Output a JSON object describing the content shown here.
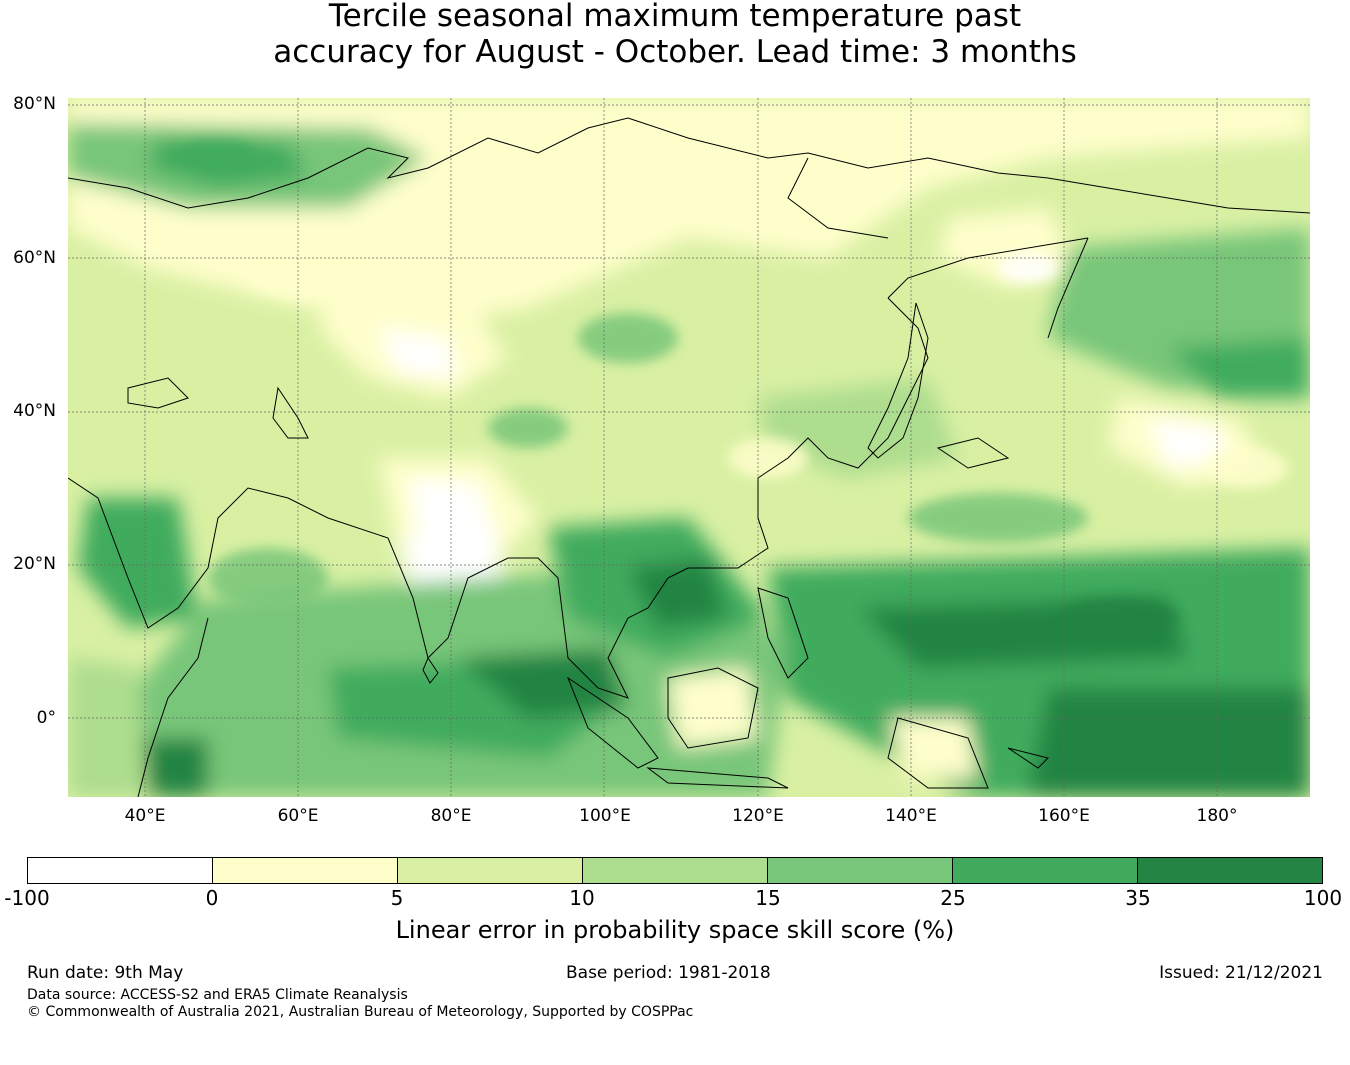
{
  "title_line1": "Tercile seasonal maximum temperature past",
  "title_line2": "accuracy for August - October. Lead time: 3 months",
  "map": {
    "lat_labels": [
      "80°N",
      "60°N",
      "40°N",
      "20°N",
      "0°"
    ],
    "lon_labels": [
      "40°E",
      "60°E",
      "80°E",
      "100°E",
      "120°E",
      "140°E",
      "160°E",
      "180°"
    ],
    "lon_range": [
      30,
      192
    ],
    "lat_range": [
      -10,
      81
    ]
  },
  "colorbar": {
    "ticks": [
      "-100",
      "0",
      "5",
      "10",
      "15",
      "25",
      "35",
      "100"
    ],
    "colors": [
      "#ffffff",
      "#fefecb",
      "#d9f0a3",
      "#addd8e",
      "#78c679",
      "#41ab5d",
      "#238443"
    ],
    "label": "Linear error in probability space skill score (%)"
  },
  "footer": {
    "run_date": "Run date: 9th May",
    "base_period": "Base period: 1981-2018",
    "issued": "Issued: 21/12/2021",
    "data_source": "Data source: ACCESS-S2 and ERA5 Climate Reanalysis",
    "copyright": "© Commonwealth of Australia 2021, Australian Bureau of Meteorology, Supported by COSPPac"
  }
}
